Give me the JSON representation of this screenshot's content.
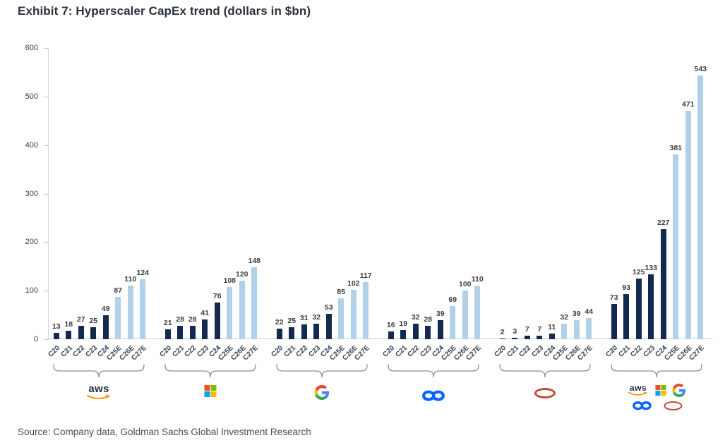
{
  "title": "Exhibit 7: Hyperscaler CapEx trend (dollars in $bn)",
  "source": "Source: Company data, Goldman Sachs Global Investment Research",
  "logos": {
    "aws_text": "aws",
    "aws_orange": "#f79400",
    "microsoft_colors": [
      "#f25022",
      "#7fba00",
      "#00a4ef",
      "#ffb900"
    ],
    "google_colors": {
      "red": "#ea4335",
      "blue": "#4285f4",
      "yellow": "#fbbc05",
      "green": "#34a853"
    },
    "meta_blue": "#0866ff",
    "oracle_red": "#c74634"
  },
  "chart_data": {
    "type": "bar",
    "title": "Exhibit 7: Hyperscaler CapEx trend (dollars in $bn)",
    "xlabel": "",
    "ylabel": "",
    "ylim": [
      0,
      600
    ],
    "yticks": [
      0,
      100,
      200,
      300,
      400,
      500,
      600
    ],
    "grid": false,
    "legend": "none",
    "categories": [
      "C20",
      "C21",
      "C22",
      "C23",
      "C24",
      "C25E",
      "C26E",
      "C27E"
    ],
    "estimate_categories": [
      "C25E",
      "C26E",
      "C27E"
    ],
    "color_historical": "#13294e",
    "color_estimate": "#b1d0e9",
    "groups": [
      {
        "name": "Amazon Web Services",
        "logo": "aws",
        "values": [
          13,
          18,
          27,
          25,
          49,
          87,
          110,
          124
        ]
      },
      {
        "name": "Microsoft",
        "logo": "microsoft",
        "values": [
          21,
          28,
          28,
          41,
          76,
          108,
          120,
          148
        ]
      },
      {
        "name": "Google",
        "logo": "google",
        "values": [
          22,
          25,
          31,
          32,
          53,
          85,
          102,
          117
        ]
      },
      {
        "name": "Meta",
        "logo": "meta",
        "values": [
          16,
          19,
          32,
          28,
          39,
          69,
          100,
          110
        ]
      },
      {
        "name": "Oracle",
        "logo": "oracle",
        "values": [
          2,
          3,
          7,
          7,
          11,
          32,
          39,
          44
        ]
      },
      {
        "name": "All hyperscalers combined",
        "logo": "combined",
        "values": [
          73,
          93,
          125,
          133,
          227,
          381,
          471,
          543
        ]
      }
    ]
  }
}
